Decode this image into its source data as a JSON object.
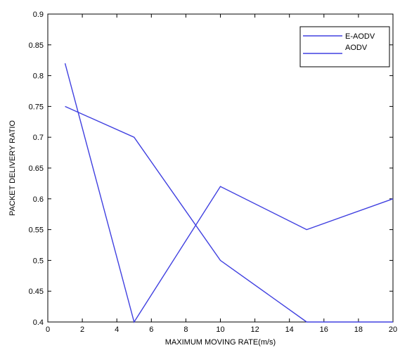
{
  "chart_data": {
    "type": "line",
    "title": "",
    "xlabel": "MAXIMUM MOVING RATE(m/s)",
    "ylabel": "PACKET DELIVERY RATIO",
    "xlim": [
      0,
      20
    ],
    "ylim": [
      0.4,
      0.9
    ],
    "xticks": [
      0,
      2,
      4,
      6,
      8,
      10,
      12,
      14,
      16,
      18,
      20
    ],
    "yticks": [
      0.4,
      0.45,
      0.5,
      0.55,
      0.6,
      0.65,
      0.7,
      0.75,
      0.8,
      0.85,
      0.9
    ],
    "ytick_labels": [
      "0.4",
      "0.45",
      "0.5",
      "0.55",
      "0.6",
      "0.65",
      "0.7",
      "0.75",
      "0.8",
      "0.85",
      "0.9"
    ],
    "grid": false,
    "legend_position": "top-right",
    "series": [
      {
        "name": "E-AODV",
        "color": "#4040e0",
        "x": [
          1,
          5,
          10,
          15,
          20
        ],
        "y": [
          0.75,
          0.7,
          0.5,
          0.4,
          0.4
        ]
      },
      {
        "name": "AODV",
        "color": "#4040e0",
        "x": [
          1,
          5,
          10,
          15,
          20
        ],
        "y": [
          0.82,
          0.4,
          0.62,
          0.55,
          0.6
        ]
      }
    ]
  }
}
